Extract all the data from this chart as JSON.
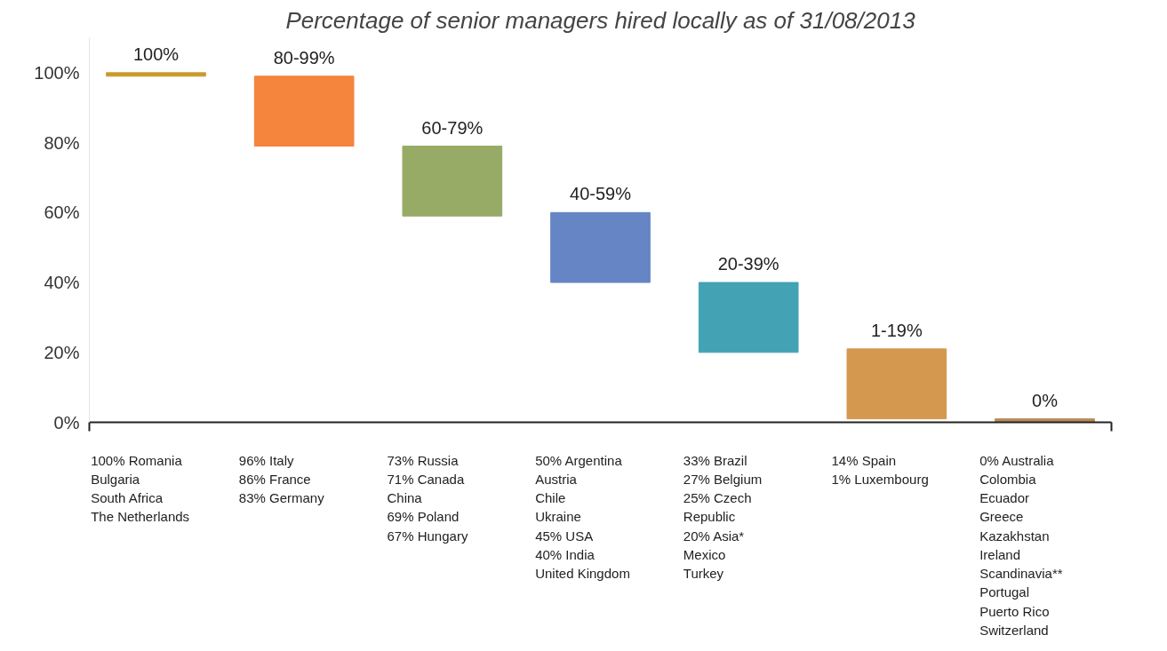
{
  "chart_data": {
    "type": "bar",
    "title": "Percentage of senior managers hired locally as of 31/08/2013",
    "categories": [
      "100%",
      "80-99%",
      "60-79%",
      "40-59%",
      "20-39%",
      "1-19%",
      "0%"
    ],
    "base": [
      99,
      79,
      59,
      40,
      20,
      1,
      0
    ],
    "values": [
      1,
      20,
      20,
      20,
      20,
      20,
      1
    ],
    "colors": [
      "#c99a2e",
      "#f5843c",
      "#97ab66",
      "#6585c4",
      "#43a3b4",
      "#d4984f",
      "#b98a5a"
    ],
    "ylim": [
      0,
      110
    ],
    "yticks": [
      {
        "value": 0,
        "label": "0%"
      },
      {
        "value": 20,
        "label": "20%"
      },
      {
        "value": 40,
        "label": "40%"
      },
      {
        "value": 60,
        "label": "60%"
      },
      {
        "value": 80,
        "label": "80%"
      },
      {
        "value": 100,
        "label": "100%"
      }
    ],
    "tick_labels": "y",
    "grid": false,
    "annotations": [
      "100% Romania\nBulgaria\nSouth Africa\nThe Netherlands",
      "96% Italy\n86% France\n83% Germany",
      "73% Russia\n71% Canada\nChina\n69% Poland\n67% Hungary",
      "50% Argentina\nAustria\nChile\nUkraine\n45% USA\n40% India\nUnited Kingdom",
      "33% Brazil\n27% Belgium\n25% Czech\nRepublic\n20% Asia*\nMexico\nTurkey",
      "14% Spain\n1% Luxembourg",
      "0% Australia\nColombia\nEcuador\nGreece\nKazakhstan\nIreland\nScandinavia**\nPortugal\nPuerto Rico\nSwitzerland"
    ]
  }
}
